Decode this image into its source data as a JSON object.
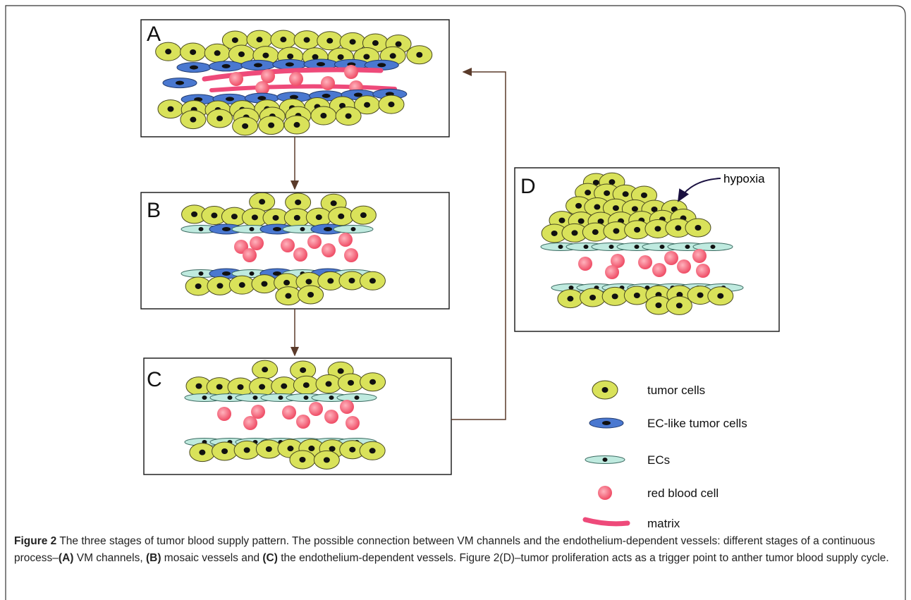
{
  "panels": [
    "A",
    "B",
    "C",
    "D"
  ],
  "annotation": "hypoxia",
  "legend": [
    "tumor cells",
    "EC-like tumor cells",
    "ECs",
    "red blood cell",
    "matrix"
  ],
  "caption": [
    "Figure 2",
    " The three stages of tumor blood supply pattern. The possible connection between VM channels and the endothelium-dependent vessels: different stages of a continuous process–",
    "(A)",
    " VM channels, ",
    "(B)",
    " mosaic vessels and ",
    "(C)",
    " the endothelium-dependent vessels. Figure 2(D)–tumor proliferation acts as a trigger point to anther tumor blood supply cycle."
  ]
}
